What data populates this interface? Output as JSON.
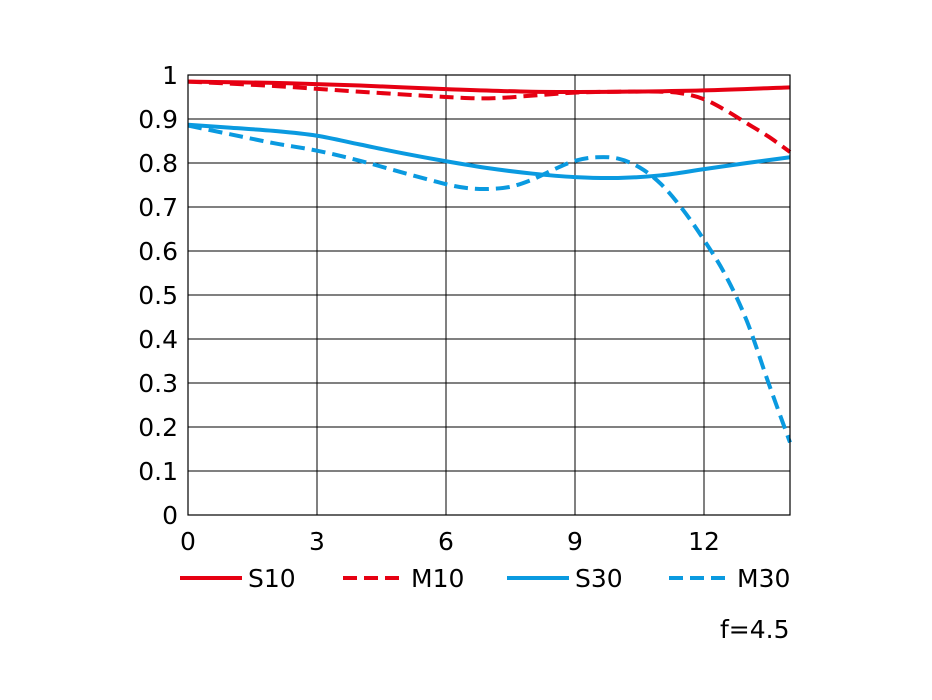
{
  "chart_data": {
    "type": "line",
    "xlim": [
      0,
      14
    ],
    "ylim": [
      0,
      1
    ],
    "x_ticks": [
      "0",
      "3",
      "6",
      "9",
      "12"
    ],
    "y_ticks": [
      "0",
      "0.1",
      "0.2",
      "0.3",
      "0.4",
      "0.5",
      "0.6",
      "0.7",
      "0.8",
      "0.9",
      "1"
    ],
    "grid": true,
    "legend_placement": "bottom",
    "annotation": "f=4.5",
    "series": [
      {
        "name": "S10",
        "color": "#e60012",
        "style": "solid",
        "x": [
          0,
          2,
          4,
          6,
          8,
          10,
          12,
          14
        ],
        "y": [
          0.985,
          0.982,
          0.976,
          0.968,
          0.962,
          0.962,
          0.965,
          0.972
        ]
      },
      {
        "name": "M10",
        "color": "#e60012",
        "style": "dashed",
        "x": [
          0,
          2,
          4,
          6,
          7,
          8,
          9,
          10,
          11,
          11.5,
          12,
          12.5,
          13,
          13.5,
          14
        ],
        "y": [
          0.985,
          0.975,
          0.962,
          0.95,
          0.947,
          0.953,
          0.96,
          0.962,
          0.962,
          0.958,
          0.945,
          0.92,
          0.89,
          0.86,
          0.825
        ]
      },
      {
        "name": "S30",
        "color": "#0a9ae0",
        "style": "solid",
        "x": [
          0,
          1,
          2,
          3,
          4,
          5,
          6,
          7,
          8,
          9,
          10,
          11,
          12,
          13,
          14
        ],
        "y": [
          0.887,
          0.88,
          0.873,
          0.862,
          0.842,
          0.822,
          0.804,
          0.788,
          0.776,
          0.768,
          0.766,
          0.772,
          0.786,
          0.8,
          0.813
        ]
      },
      {
        "name": "M30",
        "color": "#0a9ae0",
        "style": "dashed",
        "x": [
          0,
          1,
          2,
          3,
          4,
          5,
          6,
          6.5,
          7,
          7.5,
          8,
          8.5,
          9,
          9.5,
          10,
          10.5,
          11,
          11.5,
          12,
          12.5,
          13,
          13.5,
          14
        ],
        "y": [
          0.885,
          0.865,
          0.845,
          0.828,
          0.805,
          0.778,
          0.752,
          0.743,
          0.741,
          0.746,
          0.762,
          0.785,
          0.805,
          0.813,
          0.81,
          0.79,
          0.752,
          0.695,
          0.625,
          0.545,
          0.44,
          0.3,
          0.165
        ]
      }
    ]
  }
}
